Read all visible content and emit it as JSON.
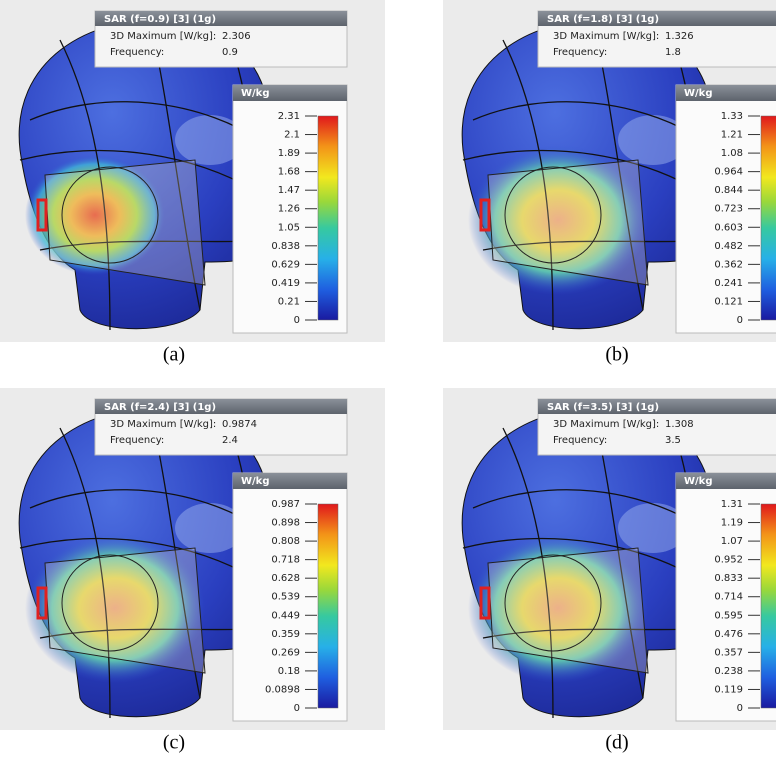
{
  "panels": [
    {
      "title": "SAR (f=0.9) [3] (1g)",
      "max_label": "3D Maximum [W/kg]:",
      "max_value": "2.306",
      "freq_label": "Frequency:",
      "freq_value": "0.9",
      "unit": "W/kg",
      "ticks": [
        "2.31",
        "2.1",
        "1.89",
        "1.68",
        "1.47",
        "1.26",
        "1.05",
        "0.838",
        "0.629",
        "0.419",
        "0.21",
        "0"
      ],
      "caption": "(a)"
    },
    {
      "title": "SAR (f=1.8) [3] (1g)",
      "max_label": "3D Maximum [W/kg]:",
      "max_value": "1.326",
      "freq_label": "Frequency:",
      "freq_value": "1.8",
      "unit": "W/kg",
      "ticks": [
        "1.33",
        "1.21",
        "1.08",
        "0.964",
        "0.844",
        "0.723",
        "0.603",
        "0.482",
        "0.362",
        "0.241",
        "0.121",
        "0"
      ],
      "caption": "(b)"
    },
    {
      "title": "SAR (f=2.4) [3] (1g)",
      "max_label": "3D Maximum [W/kg]:",
      "max_value": "0.9874",
      "freq_label": "Frequency:",
      "freq_value": "2.4",
      "unit": "W/kg",
      "ticks": [
        "0.987",
        "0.898",
        "0.808",
        "0.718",
        "0.628",
        "0.539",
        "0.449",
        "0.359",
        "0.269",
        "0.18",
        "0.0898",
        "0"
      ],
      "caption": "(c)"
    },
    {
      "title": "SAR (f=3.5) [3] (1g)",
      "max_label": "3D Maximum [W/kg]:",
      "max_value": "1.308",
      "freq_label": "Frequency:",
      "freq_value": "3.5",
      "unit": "W/kg",
      "ticks": [
        "1.31",
        "1.19",
        "1.07",
        "0.952",
        "0.833",
        "0.714",
        "0.595",
        "0.476",
        "0.357",
        "0.238",
        "0.119",
        "0"
      ],
      "caption": "(d)"
    }
  ]
}
